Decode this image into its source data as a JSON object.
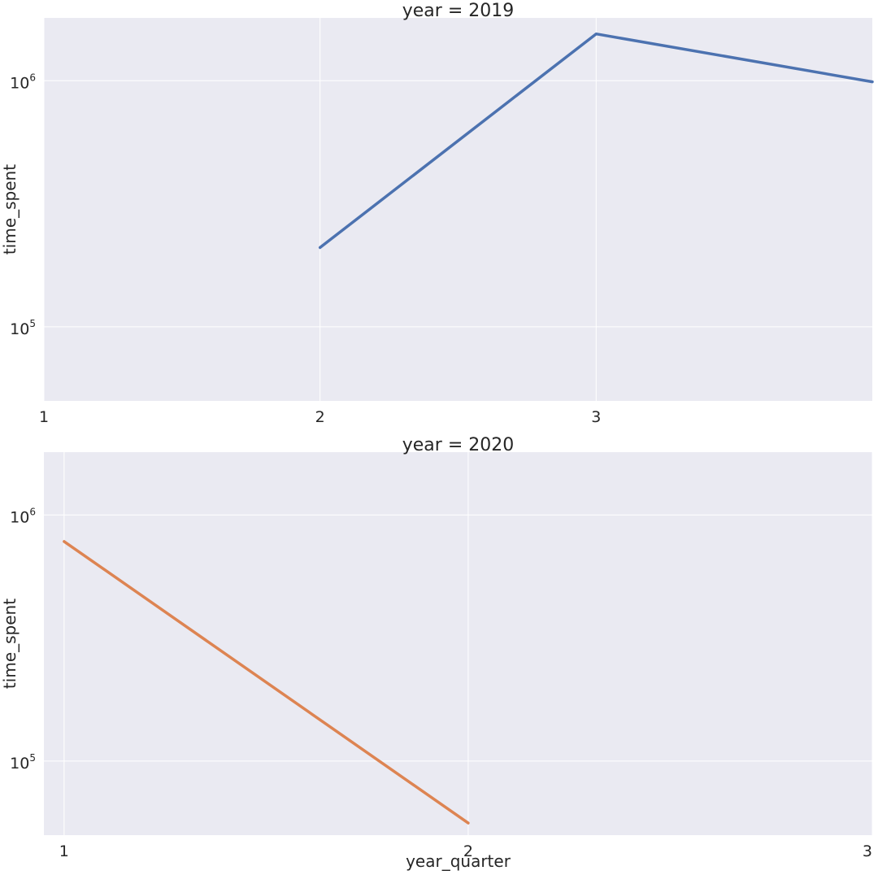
{
  "chart_data": [
    {
      "type": "line",
      "title": "year = 2019",
      "xlabel": "",
      "ylabel": "time_spent",
      "yscale": "log",
      "ylim": [
        50000,
        1800000
      ],
      "xlim": [
        1,
        4
      ],
      "x_ticks": [
        {
          "value": 1,
          "label": "1"
        },
        {
          "value": 2,
          "label": "2"
        },
        {
          "value": 3,
          "label": "3"
        }
      ],
      "y_ticks": [
        {
          "value": 100000,
          "base": "10",
          "exp": "5"
        },
        {
          "value": 1000000,
          "base": "10",
          "exp": "6"
        }
      ],
      "grid": true,
      "series": [
        {
          "color": "#4c72b0",
          "x": [
            2,
            3,
            4
          ],
          "y": [
            210000,
            1550000,
            990000
          ]
        }
      ]
    },
    {
      "type": "line",
      "title": "year = 2020",
      "xlabel": "year_quarter",
      "ylabel": "time_spent",
      "yscale": "log",
      "ylim": [
        50000,
        1800000
      ],
      "xlim": [
        0.95,
        3
      ],
      "x_ticks": [
        {
          "value": 1,
          "label": "1"
        },
        {
          "value": 2,
          "label": "2"
        },
        {
          "value": 3,
          "label": "3"
        }
      ],
      "y_ticks": [
        {
          "value": 100000,
          "base": "10",
          "exp": "5"
        },
        {
          "value": 1000000,
          "base": "10",
          "exp": "6"
        }
      ],
      "grid": true,
      "series": [
        {
          "color": "#dd8452",
          "x": [
            1,
            2
          ],
          "y": [
            780000,
            56000
          ]
        }
      ]
    }
  ]
}
